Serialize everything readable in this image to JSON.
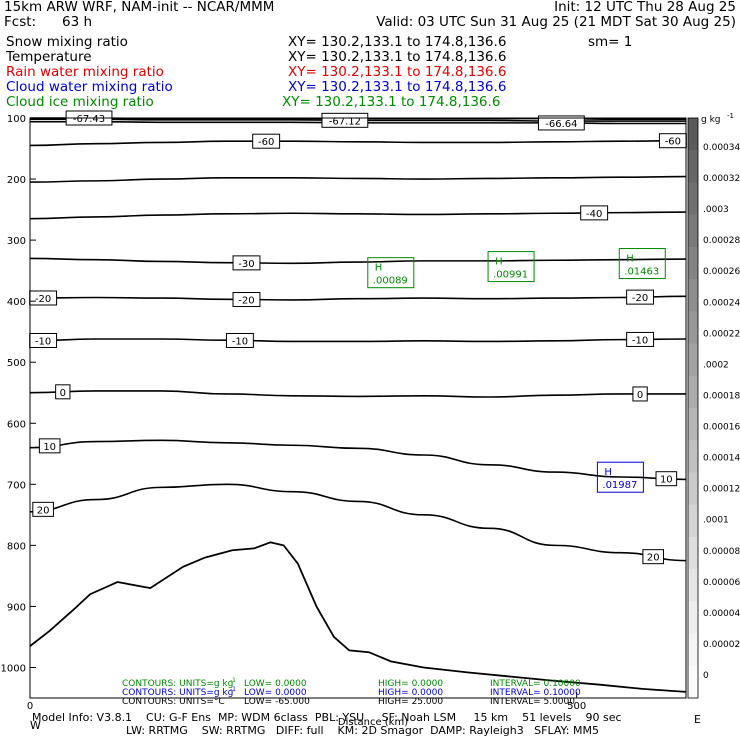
{
  "header": {
    "model": "15km ARW WRF, NAM-init -- NCAR/MMM",
    "init": "Init: 12 UTC Thu 28 Aug 25",
    "fcst_label": "Fcst:",
    "fcst_value": "63 h",
    "valid": "Valid: 03 UTC Sun 31 Aug 25 (21 MDT Sat 30 Aug 25)",
    "fields": [
      {
        "name": "Snow mixing ratio",
        "xy": "XY= 130.2,133.1 to 174.8,136.6",
        "extra": "sm= 1",
        "color": "#000000"
      },
      {
        "name": "Temperature",
        "xy": "XY= 130.2,133.1 to 174.8,136.6",
        "extra": "",
        "color": "#000000"
      },
      {
        "name": "Rain water mixing ratio",
        "xy": "XY= 130.2,133.1 to 174.8,136.6",
        "extra": "",
        "color": "#e00000"
      },
      {
        "name": "Cloud water mixing ratio",
        "xy": "XY= 130.2,133.1 to 174.8,136.6",
        "extra": "",
        "color": "#0000d0"
      },
      {
        "name": "Cloud ice mixing ratio",
        "xy": "XY= 130.2,133.1 to 174.8,136.6",
        "extra": "",
        "color": "#008a00"
      }
    ]
  },
  "chart_data": {
    "type": "contour-cross-section",
    "xlabel": "Distance (km)",
    "x_ticks": [
      "0",
      "500"
    ],
    "xlim": [
      0,
      600
    ],
    "y_ticks": [
      "100",
      "200",
      "300",
      "400",
      "500",
      "600",
      "700",
      "800",
      "900",
      "1000"
    ],
    "ylim": [
      100,
      1050
    ],
    "yscale": "pressure (inverted)",
    "temperature_contours": [
      {
        "value": -67.43,
        "label": "-67.43",
        "y": [
          100,
          100,
          101,
          101,
          101,
          101,
          101,
          101,
          101,
          102,
          102
        ]
      },
      {
        "value": -67.12,
        "label": "-67.12",
        "y": [
          102,
          102,
          103,
          103,
          103,
          104,
          104,
          104,
          105,
          105,
          105
        ]
      },
      {
        "value": -66.64,
        "label": "-66.64",
        "y": [
          106,
          106,
          107,
          107,
          107,
          108,
          108,
          108,
          108,
          109,
          109
        ]
      },
      {
        "value": -60,
        "label": "-60",
        "y": [
          145,
          142,
          140,
          138,
          138,
          139,
          140,
          140,
          139,
          138,
          137
        ]
      },
      {
        "value": -50,
        "label": "",
        "y": [
          205,
          203,
          200,
          198,
          198,
          199,
          200,
          199,
          198,
          197,
          196
        ]
      },
      {
        "value": -40,
        "label": "-40",
        "y": [
          265,
          262,
          259,
          257,
          256,
          257,
          258,
          257,
          256,
          255,
          254
        ]
      },
      {
        "value": -30,
        "label": "-30",
        "y": [
          330,
          332,
          335,
          337,
          338,
          336,
          334,
          334,
          333,
          332,
          331
        ]
      },
      {
        "value": -20,
        "label": "-20",
        "y": [
          395,
          394,
          395,
          397,
          398,
          396,
          395,
          396,
          395,
          394,
          392
        ]
      },
      {
        "value": -10,
        "label": "-10",
        "y": [
          465,
          462,
          462,
          464,
          466,
          466,
          465,
          466,
          465,
          463,
          462
        ]
      },
      {
        "value": 0,
        "label": "0",
        "y": [
          550,
          547,
          547,
          552,
          555,
          556,
          555,
          557,
          554,
          552,
          552
        ]
      },
      {
        "value": 10,
        "label": "10",
        "y": [
          640,
          630,
          628,
          632,
          636,
          641,
          652,
          668,
          680,
          688,
          692
        ]
      },
      {
        "value": 20,
        "label": "20",
        "y": [
          745,
          725,
          705,
          700,
          712,
          728,
          750,
          772,
          800,
          812,
          825
        ]
      }
    ],
    "extra_contour_labels": [
      {
        "label": "-60",
        "x_frac": 0.98,
        "contour": -60
      },
      {
        "label": "-20",
        "x_frac": 0.02,
        "contour": -20
      },
      {
        "label": "-20",
        "x_frac": 0.93,
        "contour": -20
      },
      {
        "label": "-10",
        "x_frac": 0.02,
        "contour": -10
      },
      {
        "label": "-10",
        "x_frac": 0.93,
        "contour": -10
      },
      {
        "label": "-30",
        "x_frac": 0.33,
        "contour": -30
      },
      {
        "label": "0",
        "x_frac": 0.93,
        "contour": 0
      },
      {
        "label": "10",
        "x_frac": 0.97,
        "contour": 10
      },
      {
        "label": "20",
        "x_frac": 0.95,
        "contour": 20
      }
    ],
    "highs": [
      {
        "label": "H",
        "value": ".00089",
        "x_km": 330,
        "p": 355,
        "color": "#008a00"
      },
      {
        "label": "H",
        "value": ".00991",
        "x_km": 440,
        "p": 345,
        "color": "#008a00"
      },
      {
        "label": "H",
        "value": ".01463",
        "x_km": 560,
        "p": 340,
        "color": "#008a00"
      },
      {
        "label": "H",
        "value": ".01987",
        "x_km": 540,
        "p": 690,
        "color": "#0000d0"
      }
    ],
    "terrain_p": [
      [
        0,
        965
      ],
      [
        18,
        940
      ],
      [
        40,
        905
      ],
      [
        55,
        880
      ],
      [
        80,
        860
      ],
      [
        110,
        870
      ],
      [
        140,
        835
      ],
      [
        160,
        820
      ],
      [
        185,
        808
      ],
      [
        205,
        805
      ],
      [
        220,
        795
      ],
      [
        232,
        800
      ],
      [
        245,
        830
      ],
      [
        262,
        900
      ],
      [
        278,
        950
      ],
      [
        292,
        972
      ],
      [
        310,
        975
      ],
      [
        330,
        990
      ],
      [
        360,
        1000
      ],
      [
        400,
        1008
      ],
      [
        440,
        1015
      ],
      [
        480,
        1022
      ],
      [
        520,
        1028
      ],
      [
        560,
        1035
      ],
      [
        600,
        1040
      ]
    ],
    "colorbar": {
      "units": "g kg",
      "units_exp": "-1",
      "labels": [
        "0.00034",
        "0.00032",
        ".0003",
        "0.00028",
        "0.00026",
        "0.00024",
        "0.00022",
        ".0002",
        "0.00018",
        "0.00016",
        "0.00014",
        "0.00012",
        ".0001",
        "0.00008",
        "0.00006",
        "0.00004",
        "0.00002",
        "0"
      ],
      "colors_top_to_bottom": [
        "#5a5a5a",
        "#666666",
        "#707070",
        "#7a7a7a",
        "#848484",
        "#8e8e8e",
        "#989898",
        "#a2a2a2",
        "#acacac",
        "#b6b6b6",
        "#c0c0c0",
        "#cacaca",
        "#d4d4d4",
        "#dedede",
        "#e6e6e6",
        "#eeeeee",
        "#f4f4f4",
        "#fafafa"
      ]
    }
  },
  "contour_info": [
    {
      "text": "CONTOURS:  UNITS=g kg",
      "exp": "-1",
      "low": "LOW=  0.0000",
      "high": "HIGH=  0.0000",
      "interval": "INTERVAL=  0.10000",
      "color": "#008a00"
    },
    {
      "text": "CONTOURS:  UNITS=g kg",
      "exp": "-1",
      "low": "LOW=  0.0000",
      "high": "HIGH=  0.0000",
      "interval": "INTERVAL=  0.10000",
      "color": "#0000d0"
    },
    {
      "text": "CONTOURS:  UNITS=°C",
      "exp": "",
      "low": "LOW= -65.000",
      "high": "HIGH=  25.000",
      "interval": "INTERVAL=  5.0000",
      "color": "#000000"
    }
  ],
  "footer": {
    "line1": "Model Info: V3.8.1    CU: G-F Ens  MP: WDM 6class  PBL: YSU     SF: Noah LSM     15 km    51 levels    90 sec",
    "line2": "LW: RRTMG    SW: RRTMG   DIFF: full    KM: 2D Smagor  DAMP: Rayleigh3   SFLAY: MM5",
    "left_marker": "W",
    "right_marker": "E"
  }
}
